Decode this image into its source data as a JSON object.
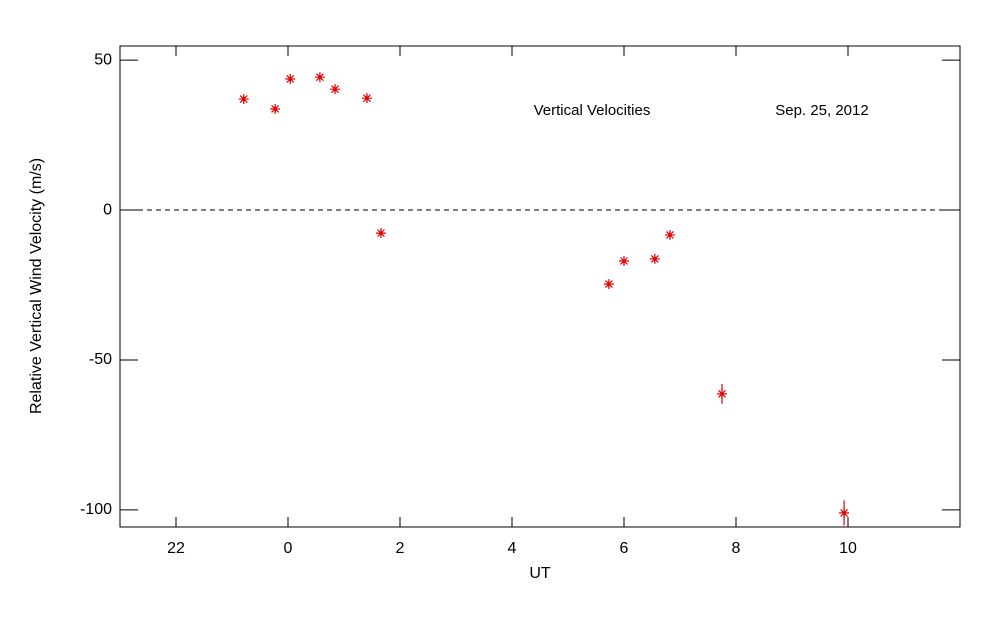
{
  "chart_data": {
    "type": "scatter",
    "x_label": "UT",
    "y_label": "Relative Vertical Wind Velocity (m/s)",
    "annotations": [
      "Vertical Velocities",
      "Sep. 25, 2012"
    ],
    "xlim": [
      -3,
      12
    ],
    "ylim": [
      -105.7,
      54.7
    ],
    "xticks": [
      {
        "value": -2,
        "label": "22"
      },
      0,
      2,
      4,
      6,
      8,
      10
    ],
    "yticks": [
      -100,
      -50,
      0,
      50
    ],
    "reference_line": 0,
    "color": "#e00000",
    "x": [
      -0.79,
      -0.23,
      0.04,
      0.57,
      0.84,
      1.41,
      1.66,
      5.73,
      6.0,
      6.55,
      6.82,
      7.75,
      9.93
    ],
    "values": [
      37,
      33.7,
      43.7,
      44.3,
      40.3,
      37.3,
      -7.7,
      -24.7,
      -17,
      -16.3,
      -8.3,
      -61.3,
      -101
    ],
    "errors": [
      1,
      1,
      1,
      1,
      1,
      1,
      1,
      1,
      1,
      1,
      1,
      3.3,
      4.2
    ]
  }
}
